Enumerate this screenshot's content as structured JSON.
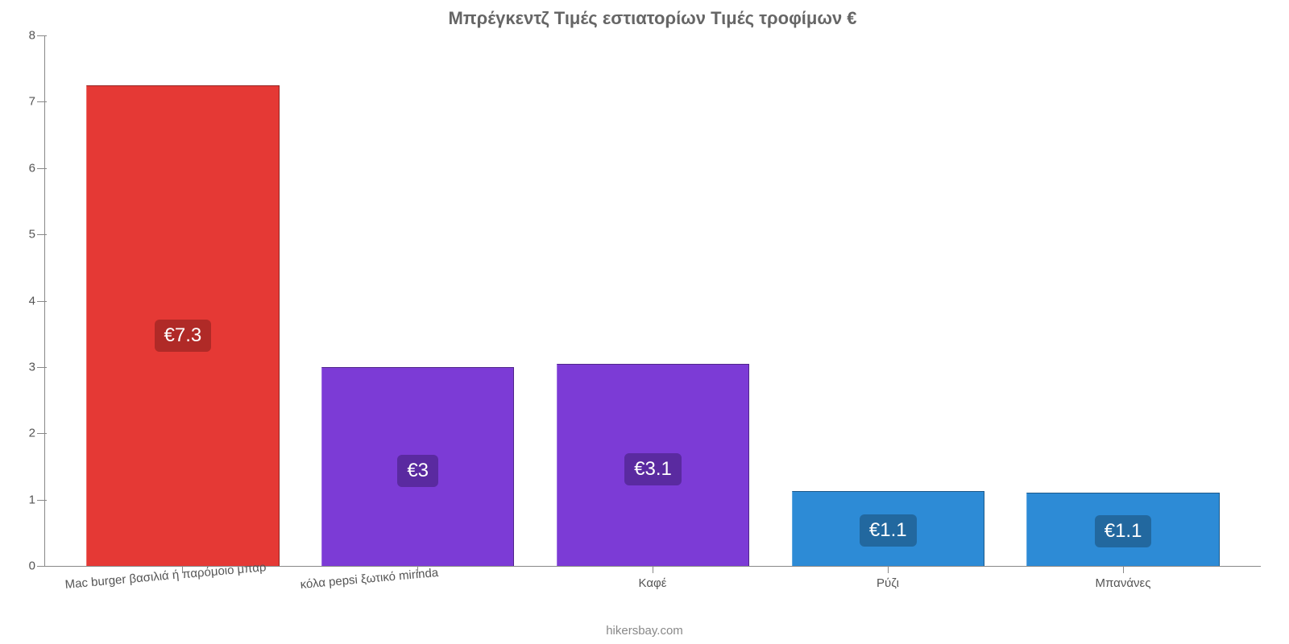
{
  "chart": {
    "type": "bar",
    "title": "Μπρέγκεντζ Τιμές εστιατορίων Τιμές τροφίμων €",
    "title_color": "#666666",
    "title_fontsize": 22,
    "background_color": "#ffffff",
    "axis_color": "#888888",
    "tick_label_color": "#555555",
    "tick_label_fontsize": 15,
    "y": {
      "min": 0,
      "max": 8,
      "tick_step": 1,
      "ticks": [
        "0",
        "1",
        "2",
        "3",
        "4",
        "5",
        "6",
        "7",
        "8"
      ]
    },
    "categories": [
      "Mac burger βασιλιά ή παρόμοιο μπαρ",
      "κόλα pepsi ξωτικό mirinda",
      "Καφέ",
      "Ρύζι",
      "Μπανάνες"
    ],
    "values": [
      7.25,
      3.0,
      3.05,
      1.13,
      1.1
    ],
    "value_labels": [
      "€7.3",
      "€3",
      "€3.1",
      "€1.1",
      "€1.1"
    ],
    "bar_colors": [
      "#e53935",
      "#7c3bd6",
      "#7c3bd6",
      "#2d8bd6",
      "#2d8bd6"
    ],
    "bar_label_bg": [
      "#b02a27",
      "#5a2aa0",
      "#5a2aa0",
      "#22689f",
      "#22689f"
    ],
    "bar_label_color": "#ffffff",
    "bar_label_fontsize": 24,
    "bar_width_pct": 82,
    "x_label_rotate_first_two": true
  },
  "attribution": "hikersbay.com"
}
